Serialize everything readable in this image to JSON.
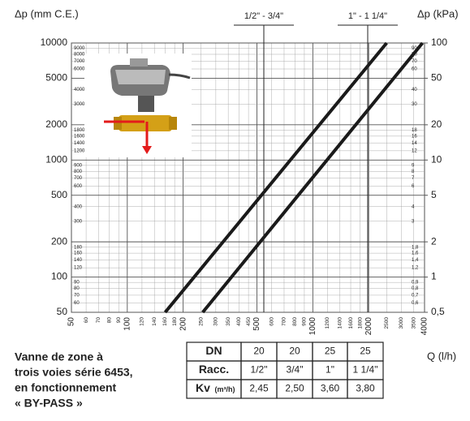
{
  "chart_data": {
    "type": "line",
    "log_scale": true,
    "grid": true,
    "ylabel": "Δp (mm C.E.)",
    "y2label": "Δp (kPa)",
    "xlabel": "Q (l/h)",
    "xlim": [
      50,
      4000
    ],
    "ylim": [
      50,
      10000
    ],
    "y2lim": [
      0.5,
      100
    ],
    "xticks": [
      50,
      100,
      200,
      500,
      1000,
      2000,
      4000
    ],
    "xminor_ticks": [
      60,
      70,
      80,
      90,
      120,
      140,
      160,
      180,
      250,
      300,
      350,
      400,
      450,
      600,
      700,
      800,
      900,
      1200,
      1400,
      1600,
      1800,
      2500,
      3000,
      3500
    ],
    "yticks": [
      50,
      100,
      200,
      500,
      1000,
      2000,
      5000,
      10000
    ],
    "yminor_ticks": [
      60,
      70,
      80,
      90,
      120,
      140,
      160,
      180,
      300,
      400,
      600,
      700,
      800,
      900,
      1200,
      1400,
      1600,
      1800,
      3000,
      4000,
      6000,
      7000,
      8000,
      9000
    ],
    "y2ticks": [
      {
        "value": 0.5,
        "label": "0,5"
      },
      1,
      2,
      5,
      10,
      20,
      50,
      100
    ],
    "y2minor_ticks": [
      {
        "value": 0.6,
        "label": "0,6"
      },
      {
        "value": 0.7,
        "label": "0,7"
      },
      {
        "value": 0.8,
        "label": "0,8"
      },
      {
        "value": 0.9,
        "label": "0,9"
      },
      {
        "value": 1.2,
        "label": "1,2"
      },
      {
        "value": 1.4,
        "label": "1,4"
      },
      {
        "value": 1.6,
        "label": "1,6"
      },
      {
        "value": 1.8,
        "label": "1,8"
      },
      3,
      4,
      6,
      7,
      8,
      9,
      12,
      14,
      16,
      18,
      30,
      40,
      60,
      70,
      80,
      90
    ],
    "series": [
      {
        "name": "1/2\" - 3/4\"",
        "color": "#1a1a1a",
        "x": [
          160,
          2500
        ],
        "values": [
          50,
          10000
        ]
      },
      {
        "name": "1\" - 1 1/4\"",
        "color": "#1a1a1a",
        "x": [
          255,
          3900
        ],
        "values": [
          50,
          10000
        ]
      }
    ]
  },
  "caption": [
    "Vanne de zone à",
    "trois voies série 6453,",
    "en fonctionnement",
    "« BY-PASS »"
  ],
  "table": {
    "rows": [
      [
        "DN",
        "20",
        "20",
        "25",
        "25"
      ],
      [
        "Racc.",
        "1/2\"",
        "3/4\"",
        "1\"",
        "1 1/4\""
      ],
      [
        "Kv",
        "2,45",
        "2,50",
        "3,60",
        "3,80"
      ]
    ],
    "kv_unit": "(m³/h)"
  }
}
